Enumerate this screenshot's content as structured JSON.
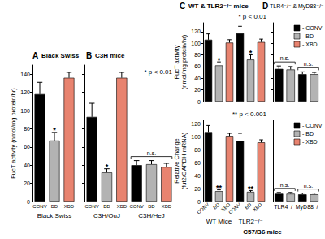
{
  "chart_data": [
    {
      "panel": "A",
      "title": "Black Swiss",
      "type": "bar",
      "y_label": "FucT activity (nmol/mg protein/hr)",
      "categories": [
        "CONV",
        "BD",
        "XBD"
      ],
      "group_labels": [
        "Black Swiss"
      ],
      "values": [
        118,
        67,
        136
      ],
      "errors": [
        13,
        9,
        6
      ],
      "colors": [
        "#000000",
        "#b3b3b3",
        "#e8836f"
      ],
      "markers": [
        null,
        "*",
        null
      ],
      "ylim": [
        0,
        150
      ],
      "yticks": [
        0,
        20,
        40,
        60,
        80,
        100,
        120,
        140
      ]
    },
    {
      "panel": "B",
      "title": "C3H mice",
      "type": "bar",
      "categories": [
        "CONV",
        "BD",
        "XBD",
        "CONV",
        "BD",
        "XBD"
      ],
      "group_labels": [
        "C3H/OuJ",
        "C3H/HeJ"
      ],
      "values": [
        93,
        32,
        136,
        40,
        41,
        38
      ],
      "errors": [
        15,
        4,
        6,
        5,
        4,
        4
      ],
      "colors": [
        "#000000",
        "#b3b3b3",
        "#e8836f",
        "#000000",
        "#b3b3b3",
        "#e8836f"
      ],
      "markers": [
        null,
        "*",
        null,
        null,
        null,
        null
      ],
      "group_notes": [
        {
          "text": "n.s.",
          "bars": [
            3,
            5
          ]
        }
      ],
      "note": "* p < 0.01",
      "tick_labels": "x",
      "ylim": [
        0,
        150
      ],
      "yticks": [
        0,
        20,
        40,
        60,
        80,
        100,
        120,
        140
      ]
    },
    {
      "panel": "C",
      "title": "WT & TLR2⁻/⁻ mice",
      "type": "bar",
      "y_label": "FucT activity\n(nmol/mg protein/hr)",
      "categories": [
        null,
        null,
        null,
        null,
        null,
        null
      ],
      "values": [
        106,
        62,
        101,
        117,
        72,
        102
      ],
      "errors": [
        10,
        6,
        5,
        12,
        8,
        5
      ],
      "colors": [
        "#000000",
        "#b3b3b3",
        "#e8836f",
        "#000000",
        "#b3b3b3",
        "#e8836f"
      ],
      "markers": [
        null,
        "*",
        null,
        null,
        "*",
        null
      ],
      "note": "* p < 0.01",
      "tick_labels": "y",
      "ylim": [
        0,
        135
      ],
      "yticks": [
        0,
        20,
        40,
        60,
        80,
        100,
        120
      ]
    },
    {
      "type": "bar",
      "y_label": "Relative Change\n(fut2/GAPDH mRNA)",
      "categories": [
        "CONV",
        "BD",
        "XBD",
        "CONV",
        "BD",
        "XBD"
      ],
      "group_labels": [
        "WT Mice",
        "TLR2⁻/⁻"
      ],
      "values": [
        107,
        16,
        101,
        93,
        15,
        91
      ],
      "errors": [
        10,
        2,
        4,
        12,
        2,
        4
      ],
      "colors": [
        "#000000",
        "#b3b3b3",
        "#e8836f",
        "#000000",
        "#b3b3b3",
        "#e8836f"
      ],
      "markers": [
        null,
        "**",
        null,
        null,
        "**",
        null
      ],
      "note": "** p < 0.001",
      "x_label": "C57/B6 mice",
      "ylim": [
        0,
        125
      ],
      "yticks": [
        0,
        20,
        40,
        60,
        80,
        100,
        120
      ]
    },
    {
      "panel": "D",
      "title": "TLR4⁻/⁻ & MyD88⁻/⁻",
      "type": "bar",
      "categories": [
        null,
        null,
        null,
        null
      ],
      "values": [
        56,
        55,
        47,
        47
      ],
      "errors": [
        5,
        5,
        4,
        3
      ],
      "colors": [
        "#000000",
        "#b3b3b3",
        "#000000",
        "#b3b3b3"
      ],
      "group_notes": [
        {
          "text": "n.s.",
          "bars": [
            0,
            1
          ]
        },
        {
          "text": "n.s.",
          "bars": [
            2,
            3
          ]
        }
      ],
      "legend": "upper right",
      "legend_items": [
        {
          "name": "- CONV",
          "color": "#000000"
        },
        {
          "name": "- BD",
          "color": "#b3b3b3"
        },
        {
          "name": "- XBD",
          "color": "#e8836f"
        }
      ],
      "tick_labels": false,
      "ylim": [
        0,
        135
      ],
      "yticks": [
        0,
        20,
        40,
        60,
        80,
        100,
        120
      ]
    },
    {
      "type": "bar",
      "categories": [
        null,
        null,
        null,
        null
      ],
      "group_labels": [
        "TLR4⁻/⁻",
        "MyD88⁻/⁻"
      ],
      "values": [
        12,
        12,
        11,
        11
      ],
      "errors": [
        2,
        2,
        2,
        2
      ],
      "colors": [
        "#000000",
        "#b3b3b3",
        "#000000",
        "#b3b3b3"
      ],
      "group_notes": [
        {
          "text": "n.s.",
          "bars": [
            0,
            1
          ]
        },
        {
          "text": "n.s.",
          "bars": [
            2,
            3
          ]
        }
      ],
      "legend": "upper right",
      "legend_items": [
        {
          "name": "- CONV",
          "color": "#000000"
        },
        {
          "name": "- BD",
          "color": "#b3b3b3"
        },
        {
          "name": "- XBD",
          "color": "#e8836f"
        }
      ],
      "tick_labels": false,
      "ylim": [
        0,
        125
      ],
      "yticks": [
        0,
        20,
        40,
        60,
        80,
        100,
        120
      ]
    }
  ]
}
